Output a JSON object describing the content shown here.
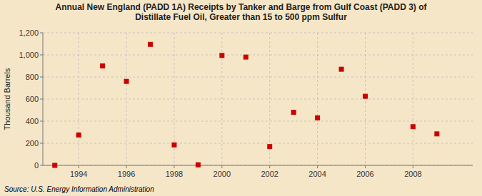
{
  "chart_data": {
    "type": "scatter",
    "title": "Annual New England (PADD 1A) Receipts by Tanker and Barge from Gulf Coast (PADD 3) of\nDistillate Fuel Oil, Greater than 15 to 500 ppm Sulfur",
    "ylabel": "Thousand Barrels",
    "annotation": "Source: U.S. Energy Information Administration",
    "x": [
      1993,
      1994,
      1995,
      1996,
      1997,
      1998,
      1999,
      2000,
      2001,
      2002,
      2003,
      2004,
      2005,
      2006,
      2008,
      2009
    ],
    "values": [
      0,
      275,
      900,
      760,
      1095,
      185,
      5,
      995,
      980,
      170,
      480,
      430,
      870,
      625,
      350,
      285
    ],
    "color": "#cc0000",
    "marker": "square",
    "xlim": [
      1992.5,
      2010.5
    ],
    "ylim": [
      0,
      1200
    ],
    "xticks": [
      1994,
      1996,
      1998,
      2000,
      2002,
      2004,
      2006,
      2008
    ],
    "yticks": [
      0,
      200,
      400,
      600,
      800,
      {
        "value": 1000,
        "label": "1,000"
      },
      {
        "value": 1200,
        "label": "1,200"
      }
    ],
    "grid": true
  }
}
